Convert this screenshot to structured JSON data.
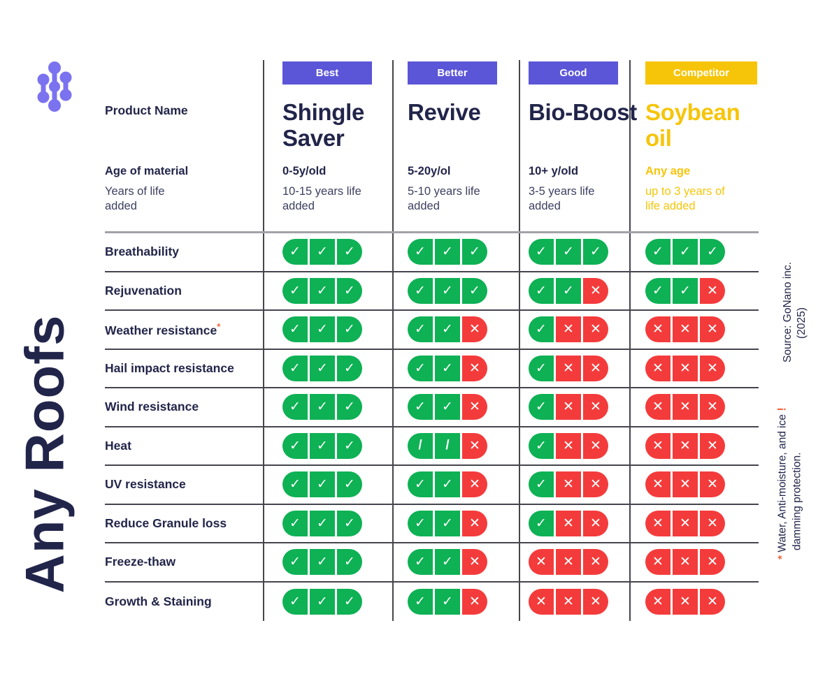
{
  "colors": {
    "navy": "#22254a",
    "purple_badge": "#5b55d7",
    "yellow": "#f6c50a",
    "green_check": "#0eb154",
    "red_x": "#f43b3b",
    "orange_note": "#f2663f",
    "logo_purple": "#7b72f0"
  },
  "brand": {
    "vertical_title": "Any Roofs",
    "logo_icon": "molecule-logo"
  },
  "header": {
    "product_name_label": "Product Name",
    "age_label": "Age of material",
    "life_label": "Years of life added"
  },
  "columns": [
    {
      "badge": "Best",
      "badge_color": "purple",
      "accent": "navy",
      "name": "Shingle Saver",
      "age": "0-5y/old",
      "life": "10-15 years life added"
    },
    {
      "badge": "Better",
      "badge_color": "purple",
      "accent": "navy",
      "name": "Revive",
      "age": "5-20y/ol",
      "life": "5-10 years life added"
    },
    {
      "badge": "Good",
      "badge_color": "purple",
      "accent": "navy",
      "name": "Bio-Boost",
      "age": "10+ y/old",
      "life": "3-5 years life added"
    },
    {
      "badge": "Competitor",
      "badge_color": "yellow",
      "accent": "yellow",
      "name": "Soybean oil",
      "age": "Any age",
      "life": "up to 3 years of life added"
    }
  ],
  "rows": [
    {
      "label": "Breathability",
      "marker": "",
      "cells": [
        [
          "check",
          "check",
          "check"
        ],
        [
          "check",
          "check",
          "check"
        ],
        [
          "check",
          "check",
          "check"
        ],
        [
          "check",
          "check",
          "check"
        ]
      ]
    },
    {
      "label": "Rejuvenation",
      "marker": "",
      "cells": [
        [
          "check",
          "check",
          "check"
        ],
        [
          "check",
          "check",
          "check"
        ],
        [
          "check",
          "check",
          "x"
        ],
        [
          "check",
          "check",
          "x"
        ]
      ]
    },
    {
      "label": "Weather resistance",
      "marker": "*",
      "cells": [
        [
          "check",
          "check",
          "check"
        ],
        [
          "check",
          "check",
          "x"
        ],
        [
          "check",
          "x",
          "x"
        ],
        [
          "x",
          "x",
          "x"
        ]
      ]
    },
    {
      "label": "Hail impact resistance",
      "marker": "",
      "cells": [
        [
          "check",
          "check",
          "check"
        ],
        [
          "check",
          "check",
          "x"
        ],
        [
          "check",
          "x",
          "x"
        ],
        [
          "x",
          "x",
          "x"
        ]
      ]
    },
    {
      "label": "Wind resistance",
      "marker": "",
      "cells": [
        [
          "check",
          "check",
          "check"
        ],
        [
          "check",
          "check",
          "x"
        ],
        [
          "check",
          "x",
          "x"
        ],
        [
          "x",
          "x",
          "x"
        ]
      ]
    },
    {
      "label": "Heat",
      "marker": "",
      "cells": [
        [
          "check",
          "check",
          "check"
        ],
        [
          "slash",
          "slash",
          "x"
        ],
        [
          "check",
          "x",
          "x"
        ],
        [
          "x",
          "x",
          "x"
        ]
      ]
    },
    {
      "label": "UV resistance",
      "marker": "",
      "cells": [
        [
          "check",
          "check",
          "check"
        ],
        [
          "check",
          "check",
          "x"
        ],
        [
          "check",
          "x",
          "x"
        ],
        [
          "x",
          "x",
          "x"
        ]
      ]
    },
    {
      "label": "Reduce Granule loss",
      "marker": "",
      "cells": [
        [
          "check",
          "check",
          "check"
        ],
        [
          "check",
          "check",
          "x"
        ],
        [
          "check",
          "x",
          "x"
        ],
        [
          "x",
          "x",
          "x"
        ]
      ]
    },
    {
      "label": "Freeze-thaw",
      "marker": "",
      "cells": [
        [
          "check",
          "check",
          "check"
        ],
        [
          "check",
          "check",
          "x"
        ],
        [
          "x",
          "x",
          "x"
        ],
        [
          "x",
          "x",
          "x"
        ]
      ]
    },
    {
      "label": "Growth & Staining",
      "marker": "",
      "cells": [
        [
          "check",
          "check",
          "check"
        ],
        [
          "check",
          "check",
          "x"
        ],
        [
          "x",
          "x",
          "x"
        ],
        [
          "x",
          "x",
          "x"
        ]
      ]
    }
  ],
  "sidenotes": {
    "source_line1": "Source: GoNano inc.",
    "source_line2": "(2025)",
    "footnote_star": "*",
    "footnote_line1": "Water, Anti-moisture, and ice",
    "footnote_bang": "!",
    "footnote_line2": "damming protection."
  },
  "chart_data": {
    "type": "table",
    "title": "Any Roofs product comparison",
    "legend": {
      "check": "pass (green)",
      "slash": "partial (green slash)",
      "x": "fail (red)"
    },
    "columns": [
      "Shingle Saver (Best, 0-5y/old, 10-15 years life added)",
      "Revive (Better, 5-20y/ol, 5-10 years life added)",
      "Bio-Boost (Good, 10+ y/old, 3-5 years life added)",
      "Soybean oil (Competitor, Any age, up to 3 years of life added)"
    ],
    "row_labels": [
      "Breathability",
      "Rejuvenation",
      "Weather resistance*",
      "Hail impact resistance",
      "Wind resistance",
      "Heat",
      "UV resistance",
      "Reduce Granule loss",
      "Freeze-thaw",
      "Growth & Staining"
    ],
    "cells": [
      [
        "check-check-check",
        "check-check-check",
        "check-check-check",
        "check-check-check"
      ],
      [
        "check-check-check",
        "check-check-check",
        "check-check-x",
        "check-check-x"
      ],
      [
        "check-check-check",
        "check-check-x",
        "check-x-x",
        "x-x-x"
      ],
      [
        "check-check-check",
        "check-check-x",
        "check-x-x",
        "x-x-x"
      ],
      [
        "check-check-check",
        "check-check-x",
        "check-x-x",
        "x-x-x"
      ],
      [
        "check-check-check",
        "slash-slash-x",
        "check-x-x",
        "x-x-x"
      ],
      [
        "check-check-check",
        "check-check-x",
        "check-x-x",
        "x-x-x"
      ],
      [
        "check-check-check",
        "check-check-x",
        "check-x-x",
        "x-x-x"
      ],
      [
        "check-check-check",
        "check-check-x",
        "x-x-x",
        "x-x-x"
      ],
      [
        "check-check-check",
        "check-check-x",
        "x-x-x",
        "x-x-x"
      ]
    ]
  }
}
